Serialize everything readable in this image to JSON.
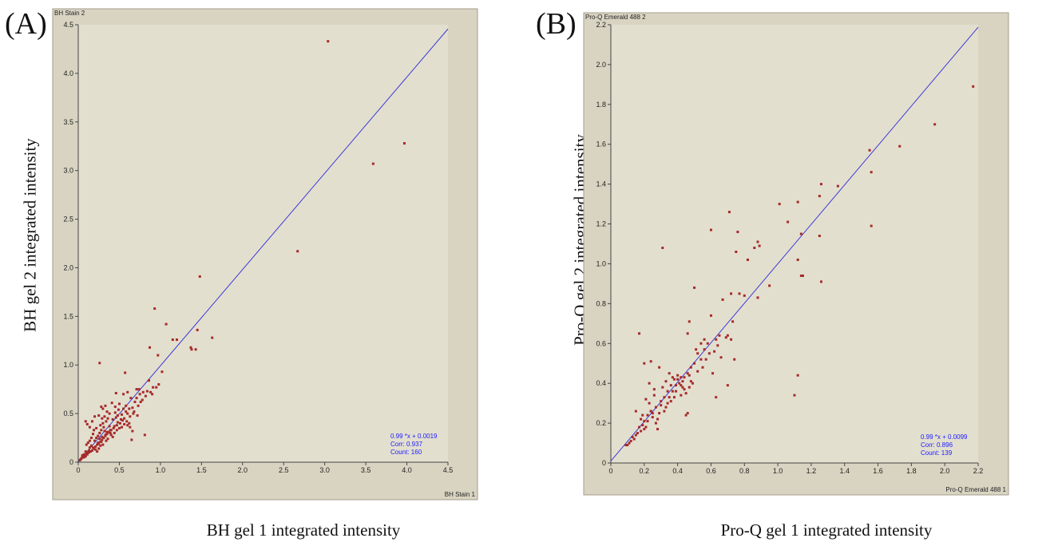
{
  "charts": [
    {
      "panel_label": "(A)",
      "window_title": "BH Stain 2",
      "axis_corner_label": "BH Stain 1",
      "ylabel": "BH gel 2 integrated intensity",
      "xlabel": "BH gel 1 integrated intensity",
      "stats": {
        "fit": "0.99 *x + 0.0019",
        "corr": "Corr: 0.937",
        "count": "Count: 160"
      }
    },
    {
      "panel_label": "(B)",
      "window_title": "Pro-Q Emerald 488 2",
      "axis_corner_label": "Pro-Q Emerald 488 1",
      "ylabel": "Pro-Q gel 2 integrated intensity",
      "xlabel": "Pro-Q gel 1 integrated intensity",
      "stats": {
        "fit": "0.99 *x + 0.0099",
        "corr": "Corr: 0.896",
        "count": "Count: 139"
      }
    }
  ],
  "chart_data": [
    {
      "type": "scatter",
      "title": "BH Stain 2",
      "xlabel": "BH gel 1 integrated intensity",
      "ylabel": "BH gel 2 integrated intensity",
      "xlim": [
        0,
        4.5
      ],
      "ylim": [
        0,
        4.5
      ],
      "xticks": [
        0,
        0.5,
        1.0,
        1.5,
        2.0,
        2.5,
        3.0,
        3.5,
        4.0,
        4.5
      ],
      "yticks": [
        0,
        0.5,
        1.0,
        1.5,
        2.0,
        2.5,
        3.0,
        3.5,
        4.0,
        4.5
      ],
      "xtick_labels": [
        "0",
        "0.5",
        "1.0",
        "1.5",
        "2.0",
        "2.5",
        "3.0",
        "3.5",
        "4.0",
        "4.5"
      ],
      "ytick_labels": [
        "0",
        "0.5",
        "1.0",
        "1.5",
        "2.0",
        "2.5",
        "3.0",
        "3.5",
        "4.0",
        "4.5"
      ],
      "fit_line": {
        "slope": 0.99,
        "intercept": 0.0019
      },
      "colors": {
        "point": "#a52a2a",
        "line": "#3b3bd6",
        "plot_bg": "#e3dfcf"
      },
      "grid": false,
      "points": [
        [
          3.04,
          4.33
        ],
        [
          3.97,
          3.28
        ],
        [
          3.59,
          3.07
        ],
        [
          2.67,
          2.17
        ],
        [
          1.48,
          1.91
        ],
        [
          0.93,
          1.58
        ],
        [
          1.63,
          1.28
        ],
        [
          1.45,
          1.36
        ],
        [
          1.07,
          1.42
        ],
        [
          1.15,
          1.26
        ],
        [
          1.2,
          1.26
        ],
        [
          1.37,
          1.18
        ],
        [
          1.38,
          1.16
        ],
        [
          1.43,
          1.16
        ],
        [
          0.97,
          1.1
        ],
        [
          0.87,
          1.18
        ],
        [
          0.26,
          1.02
        ],
        [
          1.02,
          0.93
        ],
        [
          0.57,
          0.92
        ],
        [
          0.98,
          0.8
        ],
        [
          0.86,
          0.84
        ],
        [
          0.91,
          0.77
        ],
        [
          0.95,
          0.77
        ],
        [
          0.84,
          0.73
        ],
        [
          0.88,
          0.72
        ],
        [
          0.71,
          0.75
        ],
        [
          0.74,
          0.75
        ],
        [
          0.6,
          0.72
        ],
        [
          0.55,
          0.7
        ],
        [
          0.46,
          0.71
        ],
        [
          0.41,
          0.61
        ],
        [
          0.33,
          0.58
        ],
        [
          0.3,
          0.55
        ],
        [
          0.28,
          0.57
        ],
        [
          0.5,
          0.6
        ],
        [
          0.64,
          0.66
        ],
        [
          0.69,
          0.62
        ],
        [
          0.76,
          0.62
        ],
        [
          0.68,
          0.52
        ],
        [
          0.72,
          0.48
        ],
        [
          0.53,
          0.49
        ],
        [
          0.48,
          0.48
        ],
        [
          0.45,
          0.51
        ],
        [
          0.36,
          0.45
        ],
        [
          0.34,
          0.42
        ],
        [
          0.29,
          0.45
        ],
        [
          0.25,
          0.48
        ],
        [
          0.2,
          0.47
        ],
        [
          0.17,
          0.42
        ],
        [
          0.11,
          0.39
        ],
        [
          0.09,
          0.42
        ],
        [
          0.14,
          0.36
        ],
        [
          0.19,
          0.33
        ],
        [
          0.22,
          0.35
        ],
        [
          0.27,
          0.38
        ],
        [
          0.3,
          0.4
        ],
        [
          0.38,
          0.37
        ],
        [
          0.4,
          0.33
        ],
        [
          0.44,
          0.37
        ],
        [
          0.48,
          0.41
        ],
        [
          0.52,
          0.44
        ],
        [
          0.58,
          0.52
        ],
        [
          0.62,
          0.55
        ],
        [
          0.66,
          0.56
        ],
        [
          0.58,
          0.58
        ],
        [
          0.55,
          0.55
        ],
        [
          0.62,
          0.4
        ],
        [
          0.65,
          0.23
        ],
        [
          0.81,
          0.28
        ],
        [
          0.66,
          0.32
        ],
        [
          0.6,
          0.38
        ],
        [
          0.56,
          0.45
        ],
        [
          0.42,
          0.26
        ],
        [
          0.39,
          0.3
        ],
        [
          0.35,
          0.31
        ],
        [
          0.32,
          0.32
        ],
        [
          0.33,
          0.28
        ],
        [
          0.29,
          0.26
        ],
        [
          0.26,
          0.24
        ],
        [
          0.28,
          0.21
        ],
        [
          0.24,
          0.2
        ],
        [
          0.27,
          0.17
        ],
        [
          0.25,
          0.14
        ],
        [
          0.23,
          0.11
        ],
        [
          0.21,
          0.13
        ],
        [
          0.18,
          0.15
        ],
        [
          0.16,
          0.17
        ],
        [
          0.14,
          0.15
        ],
        [
          0.13,
          0.12
        ],
        [
          0.12,
          0.1
        ],
        [
          0.1,
          0.09
        ],
        [
          0.09,
          0.11
        ],
        [
          0.08,
          0.07
        ],
        [
          0.07,
          0.08
        ],
        [
          0.06,
          0.06
        ],
        [
          0.05,
          0.05
        ],
        [
          0.04,
          0.04
        ],
        [
          0.03,
          0.03
        ],
        [
          0.02,
          0.02
        ],
        [
          0.05,
          0.07
        ],
        [
          0.07,
          0.05
        ],
        [
          0.09,
          0.06
        ],
        [
          0.11,
          0.08
        ],
        [
          0.13,
          0.1
        ],
        [
          0.15,
          0.11
        ],
        [
          0.17,
          0.12
        ],
        [
          0.19,
          0.14
        ],
        [
          0.21,
          0.16
        ],
        [
          0.23,
          0.18
        ],
        [
          0.25,
          0.19
        ],
        [
          0.27,
          0.21
        ],
        [
          0.29,
          0.23
        ],
        [
          0.31,
          0.25
        ],
        [
          0.33,
          0.27
        ],
        [
          0.35,
          0.29
        ],
        [
          0.37,
          0.31
        ],
        [
          0.39,
          0.33
        ],
        [
          0.43,
          0.35
        ],
        [
          0.47,
          0.38
        ],
        [
          0.51,
          0.4
        ],
        [
          0.54,
          0.43
        ],
        [
          0.2,
          0.22
        ],
        [
          0.22,
          0.25
        ],
        [
          0.24,
          0.27
        ],
        [
          0.26,
          0.3
        ],
        [
          0.28,
          0.33
        ],
        [
          0.31,
          0.36
        ],
        [
          0.18,
          0.29
        ],
        [
          0.16,
          0.25
        ],
        [
          0.12,
          0.2
        ],
        [
          0.1,
          0.18
        ],
        [
          0.14,
          0.22
        ],
        [
          0.3,
          0.18
        ],
        [
          0.34,
          0.22
        ],
        [
          0.36,
          0.24
        ],
        [
          0.4,
          0.28
        ],
        [
          0.44,
          0.3
        ],
        [
          0.47,
          0.33
        ],
        [
          0.5,
          0.35
        ],
        [
          0.53,
          0.36
        ],
        [
          0.56,
          0.39
        ],
        [
          0.59,
          0.42
        ],
        [
          0.63,
          0.47
        ],
        [
          0.67,
          0.5
        ],
        [
          0.73,
          0.58
        ],
        [
          0.78,
          0.64
        ],
        [
          0.82,
          0.68
        ],
        [
          0.9,
          0.7
        ],
        [
          0.71,
          0.66
        ],
        [
          0.75,
          0.7
        ],
        [
          0.79,
          0.72
        ],
        [
          0.49,
          0.54
        ],
        [
          0.45,
          0.57
        ],
        [
          0.38,
          0.5
        ],
        [
          0.32,
          0.47
        ],
        [
          0.35,
          0.52
        ],
        [
          0.42,
          0.44
        ],
        [
          0.46,
          0.46
        ],
        [
          0.6,
          0.5
        ],
        [
          0.63,
          0.36
        ]
      ]
    },
    {
      "type": "scatter",
      "title": "Pro-Q Emerald 488 2",
      "xlabel": "Pro-Q gel 1 integrated intensity",
      "ylabel": "Pro-Q gel 2 integrated intensity",
      "xlim": [
        0,
        2.2
      ],
      "ylim": [
        0,
        2.2
      ],
      "xticks": [
        0,
        0.2,
        0.4,
        0.6,
        0.8,
        1.0,
        1.2,
        1.4,
        1.6,
        1.8,
        2.0,
        2.2
      ],
      "yticks": [
        0,
        0.2,
        0.4,
        0.6,
        0.8,
        1.0,
        1.2,
        1.4,
        1.6,
        1.8,
        2.0,
        2.2
      ],
      "xtick_labels": [
        "0",
        "0.2",
        "0.4",
        "0.6",
        "0.8",
        "1.0",
        "1.2",
        "1.4",
        "1.6",
        "1.8",
        "2.0",
        "2.2"
      ],
      "ytick_labels": [
        "0",
        "0.2",
        "0.4",
        "0.6",
        "0.8",
        "1.0",
        "1.2",
        "1.4",
        "1.6",
        "1.8",
        "2.0",
        "2.2"
      ],
      "fit_line": {
        "slope": 0.99,
        "intercept": 0.0099
      },
      "colors": {
        "point": "#a52a2a",
        "line": "#3b3bd6",
        "plot_bg": "#e3dfcf"
      },
      "grid": false,
      "points": [
        [
          2.17,
          1.89
        ],
        [
          1.94,
          1.7
        ],
        [
          1.73,
          1.59
        ],
        [
          1.55,
          1.57
        ],
        [
          1.56,
          1.46
        ],
        [
          1.56,
          1.19
        ],
        [
          1.36,
          1.39
        ],
        [
          1.26,
          1.4
        ],
        [
          1.25,
          1.34
        ],
        [
          1.25,
          1.14
        ],
        [
          1.26,
          0.91
        ],
        [
          1.14,
          1.15
        ],
        [
          1.12,
          1.31
        ],
        [
          1.06,
          1.21
        ],
        [
          1.01,
          1.3
        ],
        [
          1.14,
          0.94
        ],
        [
          1.15,
          0.94
        ],
        [
          1.12,
          1.02
        ],
        [
          1.12,
          0.44
        ],
        [
          1.1,
          0.34
        ],
        [
          0.95,
          0.89
        ],
        [
          0.88,
          1.11
        ],
        [
          0.89,
          1.09
        ],
        [
          0.86,
          1.08
        ],
        [
          0.82,
          1.02
        ],
        [
          0.76,
          1.16
        ],
        [
          0.71,
          1.26
        ],
        [
          0.6,
          1.17
        ],
        [
          0.31,
          1.08
        ],
        [
          0.75,
          1.06
        ],
        [
          0.72,
          0.85
        ],
        [
          0.77,
          0.85
        ],
        [
          0.8,
          0.84
        ],
        [
          0.88,
          0.83
        ],
        [
          0.73,
          0.71
        ],
        [
          0.69,
          0.63
        ],
        [
          0.7,
          0.64
        ],
        [
          0.65,
          0.64
        ],
        [
          0.63,
          0.62
        ],
        [
          0.62,
          0.56
        ],
        [
          0.67,
          0.82
        ],
        [
          0.6,
          0.74
        ],
        [
          0.5,
          0.88
        ],
        [
          0.47,
          0.71
        ],
        [
          0.46,
          0.65
        ],
        [
          0.52,
          0.55
        ],
        [
          0.54,
          0.52
        ],
        [
          0.56,
          0.57
        ],
        [
          0.58,
          0.6
        ],
        [
          0.61,
          0.45
        ],
        [
          0.63,
          0.33
        ],
        [
          0.7,
          0.39
        ],
        [
          0.74,
          0.52
        ],
        [
          0.72,
          0.62
        ],
        [
          0.17,
          0.65
        ],
        [
          0.2,
          0.5
        ],
        [
          0.24,
          0.51
        ],
        [
          0.29,
          0.48
        ],
        [
          0.35,
          0.45
        ],
        [
          0.37,
          0.43
        ],
        [
          0.4,
          0.42
        ],
        [
          0.41,
          0.4
        ],
        [
          0.43,
          0.41
        ],
        [
          0.44,
          0.37
        ],
        [
          0.46,
          0.45
        ],
        [
          0.48,
          0.48
        ],
        [
          0.5,
          0.5
        ],
        [
          0.49,
          0.4
        ],
        [
          0.47,
          0.38
        ],
        [
          0.45,
          0.35
        ],
        [
          0.42,
          0.34
        ],
        [
          0.39,
          0.36
        ],
        [
          0.38,
          0.33
        ],
        [
          0.36,
          0.31
        ],
        [
          0.34,
          0.3
        ],
        [
          0.33,
          0.28
        ],
        [
          0.32,
          0.26
        ],
        [
          0.3,
          0.29
        ],
        [
          0.29,
          0.25
        ],
        [
          0.28,
          0.22
        ],
        [
          0.27,
          0.2
        ],
        [
          0.25,
          0.23
        ],
        [
          0.24,
          0.26
        ],
        [
          0.22,
          0.21
        ],
        [
          0.21,
          0.18
        ],
        [
          0.2,
          0.17
        ],
        [
          0.19,
          0.19
        ],
        [
          0.18,
          0.16
        ],
        [
          0.17,
          0.18
        ],
        [
          0.16,
          0.15
        ],
        [
          0.15,
          0.14
        ],
        [
          0.14,
          0.12
        ],
        [
          0.13,
          0.13
        ],
        [
          0.12,
          0.11
        ],
        [
          0.11,
          0.1
        ],
        [
          0.1,
          0.09
        ],
        [
          0.09,
          0.09
        ],
        [
          0.15,
          0.26
        ],
        [
          0.18,
          0.22
        ],
        [
          0.23,
          0.3
        ],
        [
          0.26,
          0.34
        ],
        [
          0.31,
          0.38
        ],
        [
          0.33,
          0.41
        ],
        [
          0.36,
          0.39
        ],
        [
          0.38,
          0.42
        ],
        [
          0.4,
          0.44
        ],
        [
          0.42,
          0.39
        ],
        [
          0.44,
          0.43
        ],
        [
          0.46,
          0.25
        ],
        [
          0.45,
          0.24
        ],
        [
          0.43,
          0.38
        ],
        [
          0.37,
          0.36
        ],
        [
          0.35,
          0.33
        ],
        [
          0.52,
          0.46
        ],
        [
          0.55,
          0.48
        ],
        [
          0.57,
          0.52
        ],
        [
          0.59,
          0.55
        ],
        [
          0.54,
          0.6
        ],
        [
          0.51,
          0.57
        ],
        [
          0.26,
          0.37
        ],
        [
          0.23,
          0.4
        ],
        [
          0.28,
          0.17
        ],
        [
          0.24,
          0.26
        ],
        [
          0.21,
          0.32
        ],
        [
          0.19,
          0.24
        ],
        [
          0.47,
          0.44
        ],
        [
          0.48,
          0.41
        ],
        [
          0.42,
          0.43
        ],
        [
          0.39,
          0.39
        ],
        [
          0.34,
          0.36
        ],
        [
          0.32,
          0.33
        ],
        [
          0.3,
          0.31
        ],
        [
          0.27,
          0.28
        ],
        [
          0.25,
          0.25
        ],
        [
          0.22,
          0.24
        ],
        [
          0.2,
          0.21
        ],
        [
          0.56,
          0.62
        ],
        [
          0.64,
          0.59
        ],
        [
          0.66,
          0.53
        ]
      ]
    }
  ]
}
